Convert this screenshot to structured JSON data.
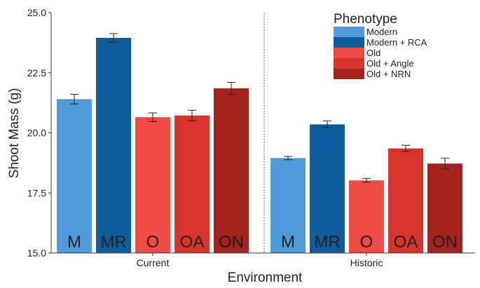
{
  "chart_data": {
    "type": "bar",
    "xlabel": "Environment",
    "ylabel": "Shoot Mass (g)",
    "ylim": [
      15.0,
      25.0
    ],
    "yticks": [
      "15.0",
      "17.5",
      "20.0",
      "22.5",
      "25.0"
    ],
    "ytick_values": [
      15.0,
      17.5,
      20.0,
      22.5,
      25.0
    ],
    "grid": false,
    "legend": {
      "title": "Phenotype",
      "placement": "top-right",
      "entries": [
        "Modern",
        "Modern + RCA",
        "Old",
        "Old + Angle",
        "Old + NRN"
      ]
    },
    "groups": [
      {
        "label": "Current",
        "bars": [
          {
            "code": "M",
            "series": "Modern",
            "value": 21.4,
            "err": 0.2
          },
          {
            "code": "MR",
            "series": "Modern + RCA",
            "value": 23.95,
            "err": 0.18
          },
          {
            "code": "O",
            "series": "Old",
            "value": 20.65,
            "err": 0.18
          },
          {
            "code": "OA",
            "series": "Old + Angle",
            "value": 20.72,
            "err": 0.22
          },
          {
            "code": "ON",
            "series": "Old + NRN",
            "value": 21.85,
            "err": 0.25
          }
        ]
      },
      {
        "label": "Historic",
        "bars": [
          {
            "code": "M",
            "series": "Modern",
            "value": 18.95,
            "err": 0.07
          },
          {
            "code": "MR",
            "series": "Modern + RCA",
            "value": 20.35,
            "err": 0.14
          },
          {
            "code": "O",
            "series": "Old",
            "value": 18.02,
            "err": 0.08
          },
          {
            "code": "OA",
            "series": "Old + Angle",
            "value": 19.35,
            "err": 0.13
          },
          {
            "code": "ON",
            "series": "Old + NRN",
            "value": 18.72,
            "err": 0.22
          }
        ]
      }
    ],
    "colors": {
      "Modern": "#4f9bd9",
      "Modern + RCA": "#0f5c9c",
      "Old": "#ef4a45",
      "Old + Angle": "#d7352c",
      "Old + NRN": "#a6221e"
    }
  }
}
